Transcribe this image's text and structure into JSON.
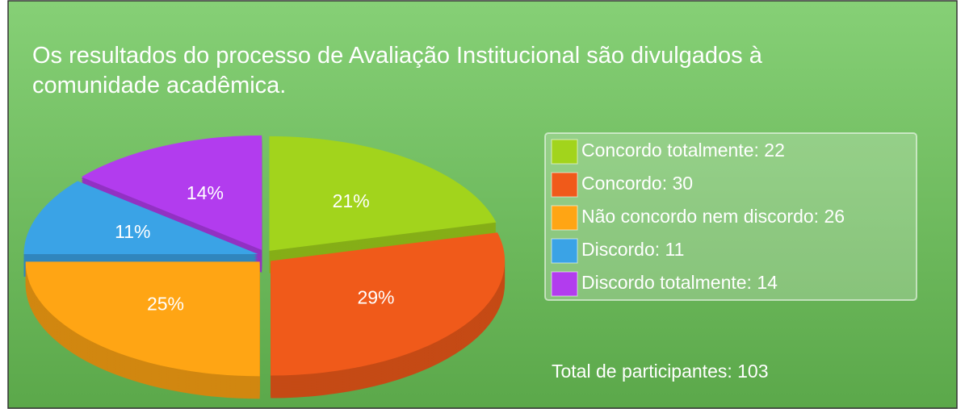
{
  "chart_data": {
    "type": "pie",
    "title_lines": [
      "Os resultados do processo de Avaliação Institucional são divulgados à",
      "comunidade acadêmica."
    ],
    "categories": [
      "Concordo totalmente",
      "Concordo",
      "Não concordo nem discordo",
      "Discordo",
      "Discordo totalmente"
    ],
    "legend_labels": [
      "Concordo totalmente: 22",
      "Concordo: 30",
      "Não concordo nem discordo: 26",
      "Discordo: 11",
      "Discordo totalmente: 14"
    ],
    "values": [
      21,
      29,
      25,
      11,
      14
    ],
    "value_labels": [
      "21%",
      "29%",
      "25%",
      "11%",
      "14%"
    ],
    "colors": [
      "#a2d41c",
      "#f05a1a",
      "#ffa514",
      "#3aa3e6",
      "#b23cee"
    ],
    "annotation": "Total de participantes: 103",
    "legend_position": "right"
  }
}
